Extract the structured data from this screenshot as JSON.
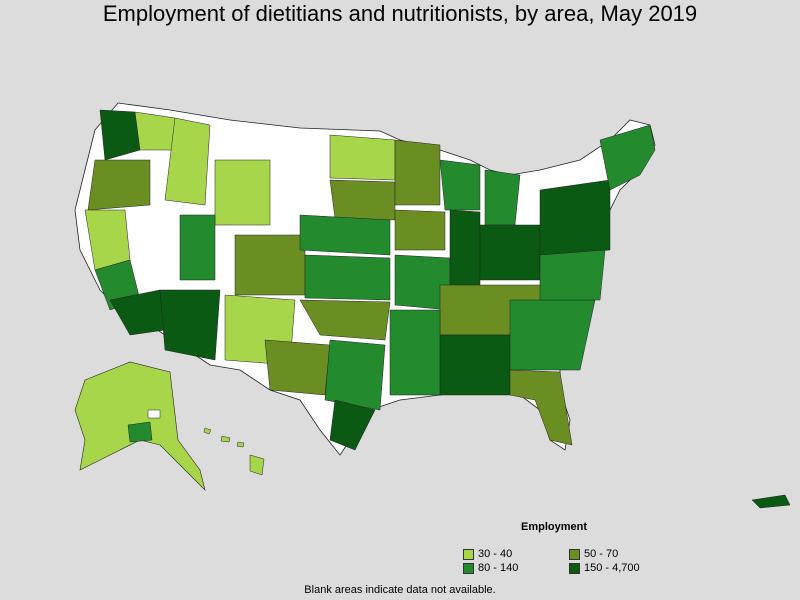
{
  "title": "Employment of dietitians and nutritionists, by area, May 2019",
  "legend": {
    "title": "Employment",
    "items": [
      {
        "label": "30 - 40",
        "color": "#a8d64a"
      },
      {
        "label": "50 - 70",
        "color": "#6b8e23"
      },
      {
        "label": "80 - 140",
        "color": "#238b2e"
      },
      {
        "label": "150 - 4,700",
        "color": "#0a5a14"
      }
    ]
  },
  "footnote": "Blank areas indicate data not available.",
  "colors": {
    "background": "#dcdcdc",
    "blank": "#ffffff",
    "border": "#222222"
  }
}
